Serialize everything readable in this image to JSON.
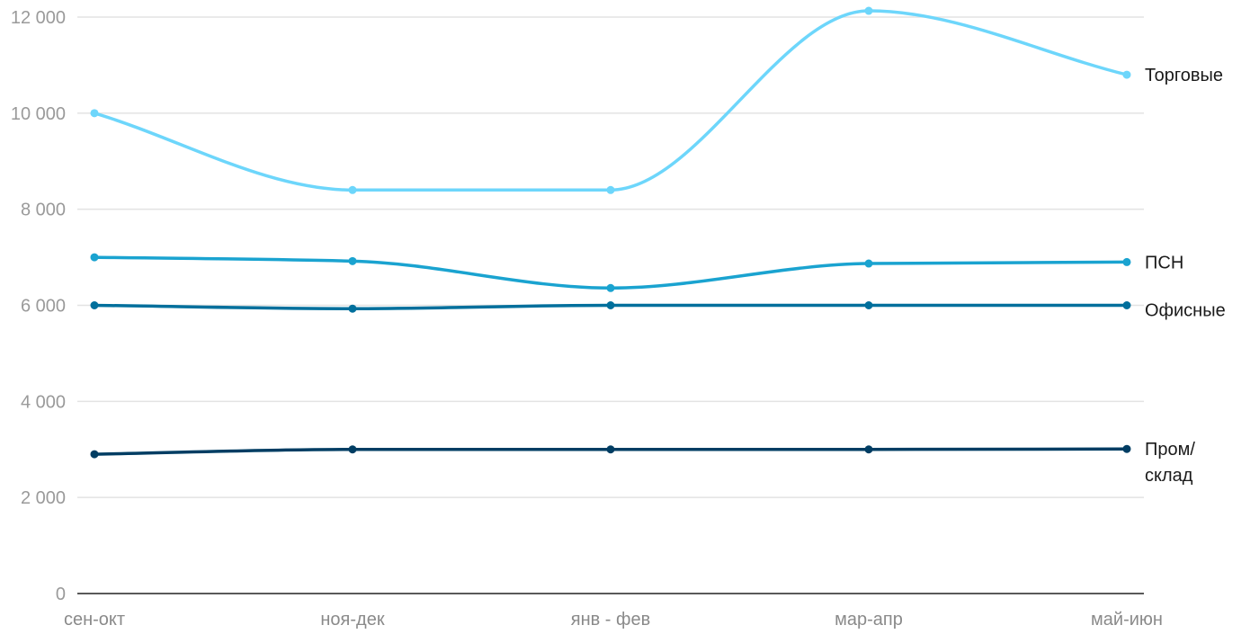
{
  "chart_data": {
    "type": "line",
    "categories": [
      "сен-окт",
      "ноя-дек",
      "янв - фев",
      "мар-апр",
      "май-июн"
    ],
    "ylim": [
      0,
      12000
    ],
    "yticks": [
      0,
      2000,
      4000,
      6000,
      8000,
      10000,
      12000
    ],
    "ytick_labels": [
      "0",
      "2 000",
      "4 000",
      "6 000",
      "8 000",
      "10 000",
      "12 000"
    ],
    "grid": true,
    "legend": "inline labels at right end of each series",
    "series": [
      {
        "name": "Торговые",
        "label_lines": [
          "Торговые"
        ],
        "color": "#6dd6fb",
        "values": [
          10000,
          8400,
          8400,
          12130,
          10800
        ]
      },
      {
        "name": "ПСН",
        "label_lines": [
          "ПСН"
        ],
        "color": "#1aa3d0",
        "values": [
          7000,
          6920,
          6360,
          6870,
          6900
        ]
      },
      {
        "name": "Офисные",
        "label_lines": [
          "Офисные"
        ],
        "color": "#006f9c",
        "values": [
          6000,
          5930,
          6000,
          6000,
          6000
        ]
      },
      {
        "name": "Пром/склад",
        "label_lines": [
          "Пром/",
          "склад"
        ],
        "color": "#003d63",
        "values": [
          2900,
          3000,
          3000,
          3000,
          3010
        ]
      }
    ]
  }
}
